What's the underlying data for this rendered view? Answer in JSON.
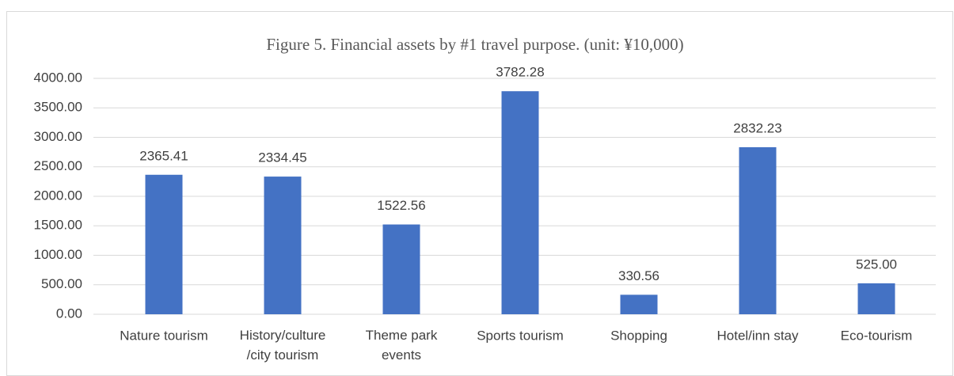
{
  "chart_data": {
    "type": "bar",
    "title": "Figure 5. Financial assets by #1 travel purpose. (unit: ¥10,000)",
    "categories": [
      "Nature tourism",
      "History/culture /city tourism",
      "Theme park events",
      "Sports tourism",
      "Shopping",
      "Hotel/inn stay",
      "Eco-tourism"
    ],
    "values": [
      2365.41,
      2334.45,
      1522.56,
      3782.28,
      330.56,
      2832.23,
      525
    ],
    "value_labels": [
      "2365.41",
      "2334.45",
      "1522.56",
      "3782.28",
      "330.56",
      "2832.23",
      "525.00"
    ],
    "color": "#4472c4",
    "ylim": [
      0,
      4000
    ],
    "yticks": [
      {
        "value": 0,
        "label": "0.00"
      },
      {
        "value": 500,
        "label": "500.00"
      },
      {
        "value": 1000,
        "label": "1000.00"
      },
      {
        "value": 1500,
        "label": "1500.00"
      },
      {
        "value": 2000,
        "label": "2000.00"
      },
      {
        "value": 2500,
        "label": "2500.00"
      },
      {
        "value": 3000,
        "label": "3000.00"
      },
      {
        "value": 3500,
        "label": "3500.00"
      },
      {
        "value": 4000,
        "label": "4000.00"
      }
    ],
    "grid": true
  }
}
